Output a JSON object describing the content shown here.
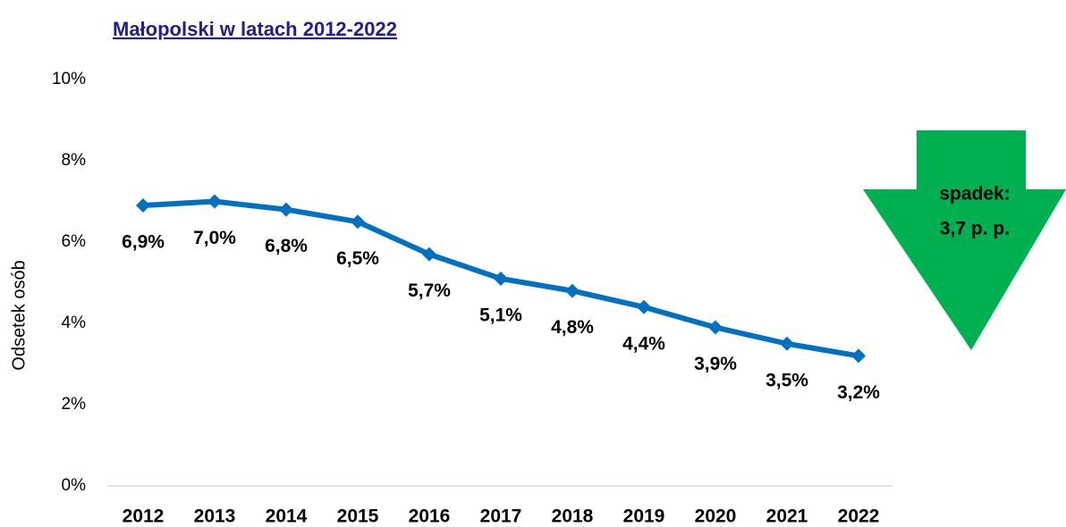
{
  "chart_data": {
    "type": "line",
    "title": "Małopolski w latach 2012-2022",
    "y_label": "Odsetek osób",
    "categories": [
      "2012",
      "2013",
      "2014",
      "2015",
      "2016",
      "2017",
      "2018",
      "2019",
      "2020",
      "2021",
      "2022"
    ],
    "series": [
      {
        "name": "Odsetek osób",
        "color": "#0070c0",
        "values": [
          6.9,
          7.0,
          6.8,
          6.5,
          5.7,
          5.1,
          4.8,
          4.4,
          3.9,
          3.5,
          3.2
        ],
        "value_labels": [
          "6,9%",
          "7,0%",
          "6,8%",
          "6,5%",
          "5,7%",
          "5,1%",
          "4,8%",
          "4,4%",
          "3,9%",
          "3,5%",
          "3,2%"
        ]
      }
    ],
    "ylim": [
      0,
      10
    ],
    "yticks": [
      {
        "value": 0,
        "label": "0%"
      },
      {
        "value": 2,
        "label": "2%"
      },
      {
        "value": 4,
        "label": "4%"
      },
      {
        "value": 6,
        "label": "6%"
      },
      {
        "value": 8,
        "label": "8%"
      },
      {
        "value": 10,
        "label": "10%"
      }
    ],
    "grid": false,
    "annotations": [
      "spadek:",
      "3,7 p. p."
    ],
    "annotation_color": "#00b050"
  }
}
